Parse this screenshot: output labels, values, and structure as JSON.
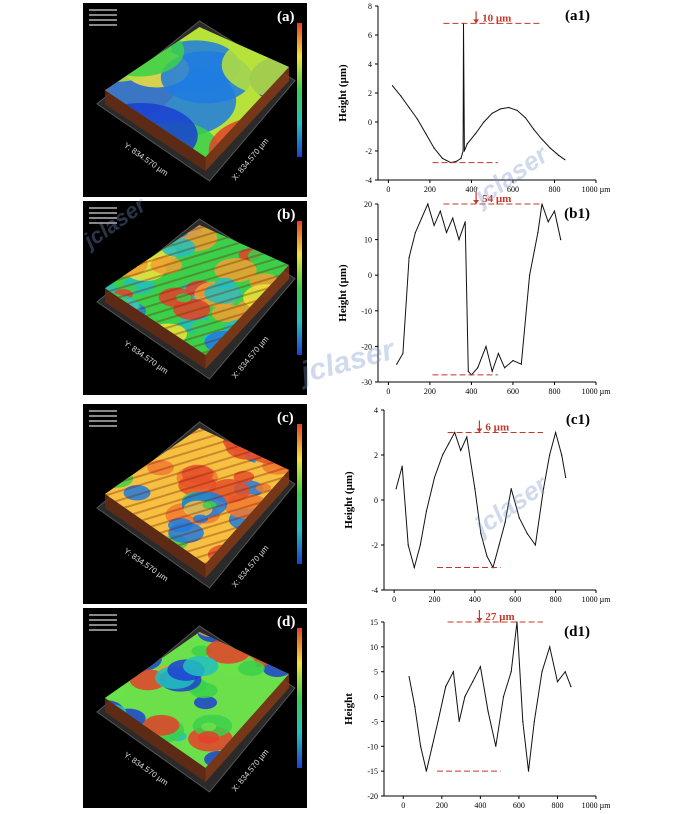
{
  "figure": {
    "panels3d": [
      {
        "label": "(a)",
        "x_axis": "X: 834.570 µm",
        "y_axis": "Y: 834.570 µm",
        "palette": "smooth"
      },
      {
        "label": "(b)",
        "x_axis": "X: 834.570 µm",
        "y_axis": "Y: 834.570 µm",
        "palette": "ridged"
      },
      {
        "label": "(c)",
        "x_axis": "X: 834.570 µm",
        "y_axis": "Y: 834.570 µm",
        "palette": "orange"
      },
      {
        "label": "(d)",
        "x_axis": "X: 834.570 µm",
        "y_axis": "Y: 834.570 µm",
        "palette": "rough"
      }
    ],
    "watermark": "jclaser"
  },
  "chart_data": [
    {
      "type": "line",
      "label": "(a1)",
      "ylabel": "Height (µm)",
      "xlabel": "1000 µm",
      "xlim": [
        -50,
        1000
      ],
      "ylim": [
        -4,
        8
      ],
      "xticks": [
        0,
        200,
        400,
        600,
        800,
        1000
      ],
      "yticks": [
        -4,
        -2,
        0,
        2,
        4,
        6,
        8
      ],
      "annotation": "10 µm",
      "x": [
        20,
        60,
        100,
        140,
        180,
        220,
        260,
        300,
        330,
        350,
        360,
        362,
        366,
        380,
        420,
        460,
        500,
        540,
        580,
        620,
        660,
        700,
        740,
        780,
        820,
        850
      ],
      "y": [
        2.5,
        1.8,
        1.0,
        0.2,
        -0.8,
        -1.8,
        -2.5,
        -2.8,
        -2.7,
        -2.5,
        -2.0,
        6.8,
        -2.0,
        -1.5,
        -0.8,
        0.0,
        0.6,
        0.9,
        1.0,
        0.8,
        0.3,
        -0.5,
        -1.2,
        -1.8,
        -2.3,
        -2.6
      ]
    },
    {
      "type": "line",
      "label": "(b1)",
      "ylabel": "Height (µm)",
      "xlabel": "1000 µm",
      "xlim": [
        -50,
        1000
      ],
      "ylim": [
        -30,
        20
      ],
      "xticks": [
        0,
        200,
        400,
        600,
        800,
        1000
      ],
      "yticks": [
        -30,
        -20,
        -10,
        0,
        10,
        20
      ],
      "annotation": "54 µm",
      "x": [
        40,
        70,
        100,
        130,
        160,
        190,
        220,
        250,
        280,
        310,
        340,
        370,
        385,
        400,
        430,
        470,
        500,
        530,
        560,
        600,
        640,
        680,
        720,
        740,
        770,
        800,
        830
      ],
      "y": [
        -25,
        -22,
        5,
        12,
        16,
        20,
        14,
        18,
        12,
        16,
        10,
        15,
        -27,
        -28,
        -26,
        -20,
        -27,
        -22,
        -26,
        -24,
        -25,
        0,
        12,
        20,
        15,
        18,
        10
      ]
    },
    {
      "type": "line",
      "label": "(c1)",
      "ylabel": "Height (µm)",
      "xlabel": "1000 µm",
      "xlim": [
        -50,
        1000
      ],
      "ylim": [
        -4,
        4
      ],
      "xticks": [
        0,
        200,
        400,
        600,
        800,
        1000
      ],
      "yticks": [
        -4,
        -2,
        0,
        2,
        4
      ],
      "annotation": "6 µm",
      "x": [
        10,
        40,
        70,
        100,
        130,
        160,
        200,
        240,
        270,
        300,
        330,
        360,
        400,
        430,
        460,
        490,
        520,
        550,
        580,
        620,
        660,
        700,
        740,
        770,
        800,
        830,
        850
      ],
      "y": [
        0.5,
        1.5,
        -2.0,
        -3.0,
        -2.0,
        -0.5,
        1.0,
        2.0,
        2.5,
        3.0,
        2.2,
        2.8,
        0.5,
        -1.5,
        -2.5,
        -3.0,
        -2.0,
        -1.0,
        0.5,
        -0.8,
        -1.5,
        -2.0,
        0.5,
        2.0,
        3.0,
        2.0,
        1.0
      ]
    },
    {
      "type": "line",
      "label": "(d1)",
      "ylabel": "Height",
      "xlabel": "1000 µm",
      "xlim": [
        -100,
        1000
      ],
      "ylim": [
        -20,
        15
      ],
      "xticks": [
        0,
        200,
        400,
        600,
        800,
        1000
      ],
      "yticks": [
        -20,
        -15,
        -10,
        -5,
        0,
        5,
        10,
        15
      ],
      "annotation": "27 µm",
      "x": [
        30,
        60,
        90,
        120,
        150,
        180,
        220,
        260,
        290,
        320,
        360,
        400,
        440,
        480,
        520,
        560,
        590,
        620,
        650,
        680,
        720,
        760,
        800,
        840,
        870
      ],
      "y": [
        4,
        -2,
        -10,
        -15,
        -10,
        -5,
        2,
        5,
        -5,
        0,
        3,
        6,
        -3,
        -10,
        0,
        5,
        15,
        -5,
        -15,
        -5,
        5,
        10,
        3,
        5,
        2
      ]
    }
  ]
}
